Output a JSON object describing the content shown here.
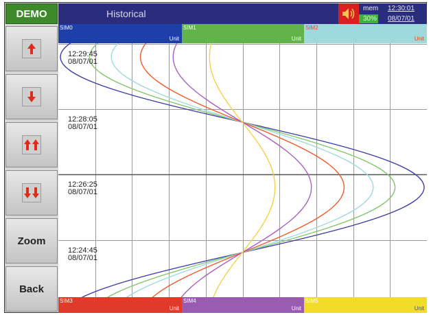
{
  "app": {
    "badge": "DEMO",
    "title": "Historical"
  },
  "status": {
    "mem_label": "mem",
    "mem_percent": "30%",
    "time": "12:30:01",
    "date": "08/07/01"
  },
  "sidebar": {
    "buttons": [
      {
        "name": "scroll-up-button",
        "icon": "up-arrow-icon"
      },
      {
        "name": "scroll-down-button",
        "icon": "down-arrow-icon"
      },
      {
        "name": "page-up-button",
        "icon": "double-up-arrow-icon"
      },
      {
        "name": "page-down-button",
        "icon": "double-down-arrow-icon"
      },
      {
        "name": "zoom-button",
        "label": "Zoom"
      },
      {
        "name": "back-button",
        "label": "Back"
      }
    ]
  },
  "channels_top": [
    {
      "name": "SIM0",
      "unit": "Unit",
      "color": "#1f3fa8"
    },
    {
      "name": "SIM1",
      "unit": "Unit",
      "color": "#62b34a"
    },
    {
      "name": "SIM2",
      "unit": "Unit",
      "color": "#9ed9dd"
    }
  ],
  "channels_bottom": [
    {
      "name": "SIM3",
      "unit": "Unit",
      "color": "#e03a2a"
    },
    {
      "name": "SIM4",
      "unit": "Unit",
      "color": "#9a5cb0"
    },
    {
      "name": "SIM5",
      "unit": "Unit",
      "color": "#f2dc2a"
    }
  ],
  "timestamps": [
    {
      "time": "12:29:45",
      "date": "08/07/01"
    },
    {
      "time": "12:28:05",
      "date": "08/07/01"
    },
    {
      "time": "12:26:25",
      "date": "08/07/01"
    },
    {
      "time": "12:24:45",
      "date": "08/07/01"
    }
  ],
  "traces": [
    {
      "channel": "SIM0",
      "color": "#3a3aa8",
      "amplitude": 1.0
    },
    {
      "channel": "SIM1",
      "color": "#7fc56a",
      "amplitude": 0.84
    },
    {
      "channel": "SIM2",
      "color": "#9ed9dd",
      "amplitude": 0.72
    },
    {
      "channel": "SIM3",
      "color": "#ef5a2a",
      "amplitude": 0.56
    },
    {
      "channel": "SIM4",
      "color": "#a760c4",
      "amplitude": 0.38
    },
    {
      "channel": "SIM5",
      "color": "#f6cf4a",
      "amplitude": 0.18
    }
  ]
}
